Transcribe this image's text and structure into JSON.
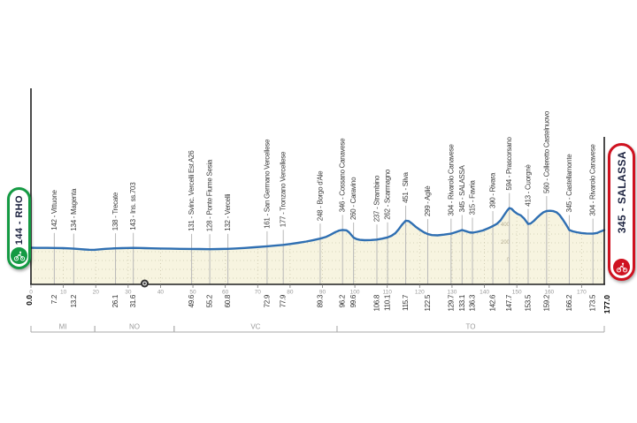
{
  "colors": {
    "profile_line": "#2f6fb2",
    "profile_fill": "#f7f4e0",
    "grid_dots": "#ccc8ad",
    "leader_line": "#b8b8b8",
    "axis": "#1f1f1f",
    "waypoint_text": "#3d3d3d",
    "km_text": "#2e2e2e",
    "km_text_endpoint": "#000000",
    "tick_text": "#999999",
    "province_text": "#9b9b9b",
    "province_line": "#aaaaaa",
    "elevation_scale_text": "#b5ae93",
    "start_green": "#149a43",
    "finish_red": "#cf1220"
  },
  "endpoints": {
    "start": {
      "badge": "144 - RHO",
      "km": 0,
      "elev": 144,
      "km_label": "0.0"
    },
    "finish": {
      "badge": "345 - SALASSA",
      "km": 177,
      "elev": 345,
      "km_label": "177.0"
    }
  },
  "chart_data": {
    "type": "area",
    "title": "Stage elevation profile 144 - RHO to 345 - SALASSA",
    "x_unit": "km",
    "y_unit": "m",
    "xlim": [
      0,
      177
    ],
    "x_ticks": [
      0,
      10,
      20,
      30,
      40,
      50,
      60,
      70,
      80,
      90,
      100,
      110,
      120,
      130,
      140,
      150,
      160,
      170
    ],
    "elevation_scale": [
      {
        "label": "400",
        "elev": 400
      },
      {
        "label": "200",
        "elev": 200
      },
      {
        "label": "0",
        "elev": 0
      }
    ],
    "waypoints": [
      {
        "name": "142 - Vittuone",
        "elev": 142,
        "km": 7.2,
        "km_label": "7.2"
      },
      {
        "name": "134 - Magenta",
        "elev": 134,
        "km": 13.2,
        "km_label": "13.2"
      },
      {
        "name": "138 - Trecate",
        "elev": 138,
        "km": 26.1,
        "km_label": "26.1"
      },
      {
        "name": "143 - Ins. ss.703",
        "elev": 143,
        "km": 31.6,
        "km_label": "31.6"
      },
      {
        "name": "131 - Svinc. Vercelli Est A26",
        "elev": 131,
        "km": 49.6,
        "km_label": "49.6"
      },
      {
        "name": "128 - Ponte Fiume Sesia",
        "elev": 128,
        "km": 55.2,
        "km_label": "55.2"
      },
      {
        "name": "132 - Vercelli",
        "elev": 132,
        "km": 60.8,
        "km_label": "60.8"
      },
      {
        "name": "161 - San Germano Vercellese",
        "elev": 161,
        "km": 72.9,
        "km_label": "72.9"
      },
      {
        "name": "177 - Tronzano Vercellese",
        "elev": 177,
        "km": 77.9,
        "km_label": "77.9"
      },
      {
        "name": "248 - Borgo d'Ale",
        "elev": 248,
        "km": 89.3,
        "km_label": "89.3"
      },
      {
        "name": "346 - Cossano Canavese",
        "elev": 346,
        "km": 96.2,
        "km_label": "96.2"
      },
      {
        "name": "260 - Caravino",
        "elev": 260,
        "km": 99.6,
        "km_label": "99.6"
      },
      {
        "name": "237 - Strambino",
        "elev": 237,
        "km": 106.8,
        "km_label": "106.8"
      },
      {
        "name": "262 - Scarmagno",
        "elev": 262,
        "km": 110.1,
        "km_label": "110.1"
      },
      {
        "name": "451 - Silva",
        "elev": 451,
        "km": 115.7,
        "km_label": "115.7"
      },
      {
        "name": "299 - Agliè",
        "elev": 299,
        "km": 122.5,
        "km_label": "122.5"
      },
      {
        "name": "304 - Rivarolo Canavese",
        "elev": 304,
        "km": 129.7,
        "km_label": "129.7"
      },
      {
        "name": "345 - SALASSA",
        "elev": 345,
        "km": 133.1,
        "km_label": "133.1"
      },
      {
        "name": "315 - Favria",
        "elev": 315,
        "km": 136.3,
        "km_label": "136.3"
      },
      {
        "name": "390 - Rivara",
        "elev": 390,
        "km": 142.6,
        "km_label": "142.6"
      },
      {
        "name": "594 - Prascorsano",
        "elev": 594,
        "km": 147.7,
        "km_label": "147.7"
      },
      {
        "name": "413 - Cuorgnè",
        "elev": 413,
        "km": 153.5,
        "km_label": "153.5"
      },
      {
        "name": "560 - Colleretto Castelnuovo",
        "elev": 560,
        "km": 159.2,
        "km_label": "159.2"
      },
      {
        "name": "345 - Castellamonte",
        "elev": 345,
        "km": 166.2,
        "km_label": "166.2"
      },
      {
        "name": "304 - Rivarolo Canavese",
        "elev": 304,
        "km": 173.5,
        "km_label": "173.5"
      }
    ],
    "provinces": [
      {
        "label": "MI",
        "from": 0,
        "to": 19.7
      },
      {
        "label": "NO",
        "from": 19.7,
        "to": 44.2
      },
      {
        "label": "VC",
        "from": 44.2,
        "to": 94.5
      },
      {
        "label": "TO",
        "from": 94.5,
        "to": 177
      }
    ],
    "route_marker": {
      "km": 35.1,
      "type": "level-crossing"
    },
    "profile": [
      [
        0,
        144
      ],
      [
        2,
        143
      ],
      [
        5,
        143
      ],
      [
        7.2,
        142
      ],
      [
        10,
        140
      ],
      [
        12,
        137
      ],
      [
        13.2,
        134
      ],
      [
        15,
        129
      ],
      [
        16.5,
        125
      ],
      [
        18,
        122
      ],
      [
        19.5,
        121
      ],
      [
        21,
        126
      ],
      [
        23,
        132
      ],
      [
        25,
        136
      ],
      [
        26.1,
        138
      ],
      [
        28,
        140
      ],
      [
        30,
        142
      ],
      [
        31.6,
        143
      ],
      [
        33.5,
        142
      ],
      [
        35.1,
        140
      ],
      [
        37,
        138
      ],
      [
        40,
        136
      ],
      [
        43,
        134
      ],
      [
        46,
        132
      ],
      [
        49.6,
        131
      ],
      [
        52,
        130
      ],
      [
        55.2,
        128
      ],
      [
        58,
        130
      ],
      [
        60.8,
        132
      ],
      [
        63,
        136
      ],
      [
        66,
        142
      ],
      [
        69,
        150
      ],
      [
        72.9,
        161
      ],
      [
        75.5,
        169
      ],
      [
        77.9,
        177
      ],
      [
        80,
        187
      ],
      [
        82.5,
        200
      ],
      [
        85,
        215
      ],
      [
        87,
        229
      ],
      [
        89.3,
        248
      ],
      [
        91,
        266
      ],
      [
        92.5,
        292
      ],
      [
        94,
        322
      ],
      [
        95.2,
        340
      ],
      [
        96.2,
        346
      ],
      [
        97.4,
        342
      ],
      [
        98.2,
        320
      ],
      [
        99.6,
        260
      ],
      [
        100.5,
        243
      ],
      [
        101.5,
        234
      ],
      [
        103,
        230
      ],
      [
        105,
        232
      ],
      [
        106.8,
        237
      ],
      [
        108.5,
        248
      ],
      [
        110.1,
        262
      ],
      [
        111.3,
        280
      ],
      [
        112.5,
        310
      ],
      [
        113.5,
        352
      ],
      [
        114.6,
        408
      ],
      [
        115.7,
        451
      ],
      [
        116.6,
        447
      ],
      [
        117.6,
        420
      ],
      [
        118.8,
        382
      ],
      [
        120,
        350
      ],
      [
        121.2,
        322
      ],
      [
        122.5,
        299
      ],
      [
        123.8,
        288
      ],
      [
        125.5,
        285
      ],
      [
        127.5,
        293
      ],
      [
        129.7,
        304
      ],
      [
        131.5,
        325
      ],
      [
        133.1,
        345
      ],
      [
        134.3,
        332
      ],
      [
        135.3,
        320
      ],
      [
        136.3,
        315
      ],
      [
        137.8,
        325
      ],
      [
        139.5,
        340
      ],
      [
        141,
        362
      ],
      [
        142.6,
        390
      ],
      [
        143.8,
        414
      ],
      [
        145,
        455
      ],
      [
        146,
        510
      ],
      [
        147,
        565
      ],
      [
        147.7,
        594
      ],
      [
        148.4,
        585
      ],
      [
        149.2,
        555
      ],
      [
        150.2,
        528
      ],
      [
        151.2,
        512
      ],
      [
        152.2,
        478
      ],
      [
        153.5,
        413
      ],
      [
        154.3,
        420
      ],
      [
        155.3,
        450
      ],
      [
        156.3,
        487
      ],
      [
        157.3,
        520
      ],
      [
        158.3,
        548
      ],
      [
        159.2,
        560
      ],
      [
        160.3,
        563
      ],
      [
        161.3,
        559
      ],
      [
        162.3,
        545
      ],
      [
        163.2,
        515
      ],
      [
        164.2,
        465
      ],
      [
        165.2,
        408
      ],
      [
        166.2,
        345
      ],
      [
        167.3,
        330
      ],
      [
        168.5,
        320
      ],
      [
        170,
        311
      ],
      [
        171.5,
        306
      ],
      [
        173.5,
        304
      ],
      [
        174.8,
        312
      ],
      [
        175.8,
        328
      ],
      [
        177,
        345
      ]
    ]
  }
}
